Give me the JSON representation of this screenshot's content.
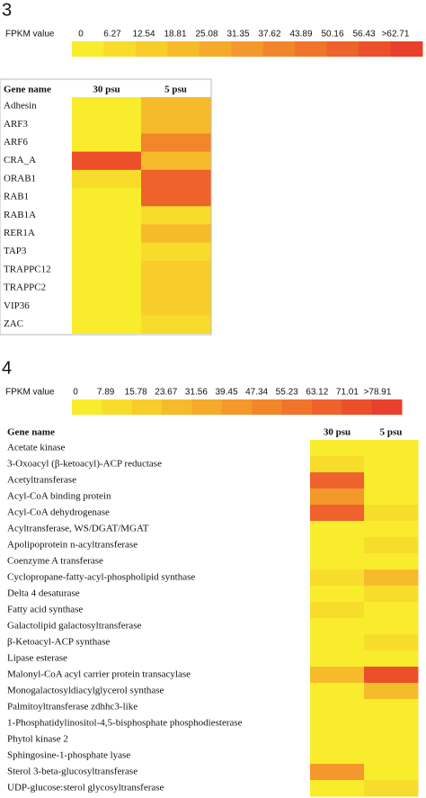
{
  "chart_data": [
    {
      "type": "heatmap",
      "panel": "3",
      "legend_title": "FPKM value",
      "legend_ticks": [
        0,
        6.27,
        12.54,
        18.81,
        25.08,
        31.35,
        37.62,
        43.89,
        50.16,
        56.43,
        {
          "value": 62.71,
          "label": ">62.71"
        }
      ],
      "colors": [
        "#f8ec2c",
        "#f8dc2c",
        "#f7cc2b",
        "#f6bb2b",
        "#f5aa2b",
        "#f4982b",
        "#f2862b",
        "#f0742b",
        "#ee622b",
        "#ec502b",
        "#e8402b"
      ],
      "row_header": "Gene name",
      "columns": [
        "30 psu",
        "5 psu"
      ],
      "rows": [
        "Adhesin",
        "ARF3",
        "ARF6",
        "CRA_A",
        "ORAB1",
        "RAB1",
        "RAB1A",
        "RER1A",
        "TAP3",
        "TRAPPC12",
        "TRAPPC2",
        "VIP36",
        "ZAC"
      ],
      "values": [
        [
          5,
          25
        ],
        [
          5,
          25
        ],
        [
          5,
          40
        ],
        [
          60,
          20
        ],
        [
          8,
          55
        ],
        [
          5,
          55
        ],
        [
          5,
          12
        ],
        [
          5,
          25
        ],
        [
          5,
          10
        ],
        [
          5,
          18
        ],
        [
          5,
          15
        ],
        [
          5,
          15
        ],
        [
          5,
          10
        ]
      ]
    },
    {
      "type": "heatmap",
      "panel": "4",
      "legend_title": "FPKM value",
      "legend_ticks": [
        0,
        7.89,
        15.78,
        23.67,
        31.56,
        39.45,
        47.34,
        55.23,
        63.12,
        71.01,
        {
          "value": 78.91,
          "label": ">78.91"
        }
      ],
      "colors": [
        "#f8ec2c",
        "#f8dc2c",
        "#f7cc2b",
        "#f6bb2b",
        "#f5aa2b",
        "#f4982b",
        "#f2862b",
        "#f0742b",
        "#ee622b",
        "#ec502b",
        "#e8402b"
      ],
      "row_header": "Gene name",
      "columns": [
        "30 psu",
        "5 psu"
      ],
      "rows": [
        "Acetate kinase",
        "3-Oxoacyl (β-ketoacyl)-ACP reductase",
        "Acetyltransferase",
        "Acyl-CoA binding protein",
        "Acyl-CoA dehydrogenase",
        "Acyltransferase, WS/DGAT/MGAT",
        "Apolipoprotein n-acyltransferase",
        "Coenzyme A transferase",
        "Cyclopropane-fatty-acyl-phospholipid synthase",
        "Delta 4 desaturase",
        "Fatty acid synthase",
        "Galactolipid galactosyltransferase",
        "β-Ketoacyl-ACP synthase",
        "Lipase esterase",
        "Malonyl-CoA acyl carrier protein transacylase",
        "Monogalactosyldiacylglycerol synthase",
        "Palmitoyltransferase zdhhc3-like",
        "1-Phosphatidylinositol-4,5-bisphosphate phosphodiesterase",
        "Phytol kinase 2",
        "Sphingosine-1-phosphate lyase",
        "Sterol 3-beta-glucosyltransferase",
        "UDP-glucose:sterol glycosyltransferase"
      ],
      "values": [
        [
          5,
          5
        ],
        [
          8,
          5
        ],
        [
          65,
          5
        ],
        [
          45,
          5
        ],
        [
          65,
          12
        ],
        [
          5,
          5
        ],
        [
          5,
          12
        ],
        [
          5,
          5
        ],
        [
          8,
          25
        ],
        [
          5,
          12
        ],
        [
          12,
          5
        ],
        [
          5,
          5
        ],
        [
          5,
          8
        ],
        [
          5,
          5
        ],
        [
          25,
          75
        ],
        [
          5,
          25
        ],
        [
          5,
          5
        ],
        [
          5,
          5
        ],
        [
          5,
          5
        ],
        [
          5,
          5
        ],
        [
          40,
          5
        ],
        [
          5,
          8
        ]
      ]
    }
  ]
}
